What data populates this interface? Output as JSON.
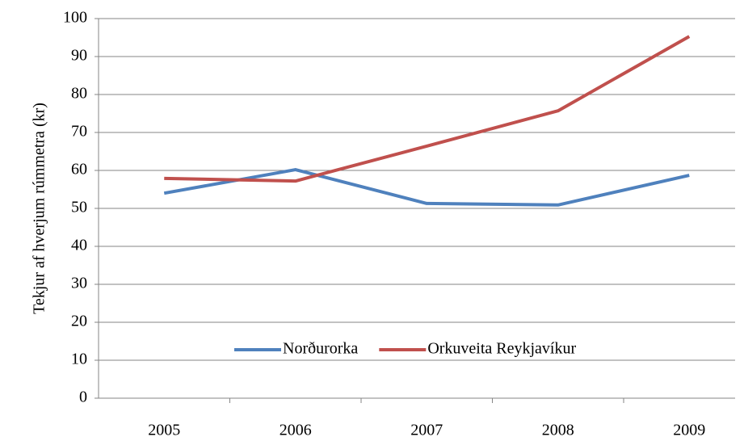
{
  "chart_data": {
    "type": "line",
    "y_label": "Tekjur af hverjum rúmmetra (kr)",
    "categories": [
      "2005",
      "2006",
      "2007",
      "2008",
      "2009"
    ],
    "series": [
      {
        "name": "Norðurorka",
        "color": "#4f81bd",
        "values": [
          54.0,
          60.2,
          51.3,
          50.9,
          58.7
        ]
      },
      {
        "name": "Orkuveita Reykjavíkur",
        "color": "#c0504d",
        "values": [
          57.9,
          57.2,
          66.4,
          75.7,
          95.3
        ]
      }
    ],
    "ylim": [
      0,
      100
    ],
    "yticks": [
      0,
      10,
      20,
      30,
      40,
      50,
      60,
      70,
      80,
      90,
      100
    ],
    "grid": true,
    "legend": "lower center"
  }
}
